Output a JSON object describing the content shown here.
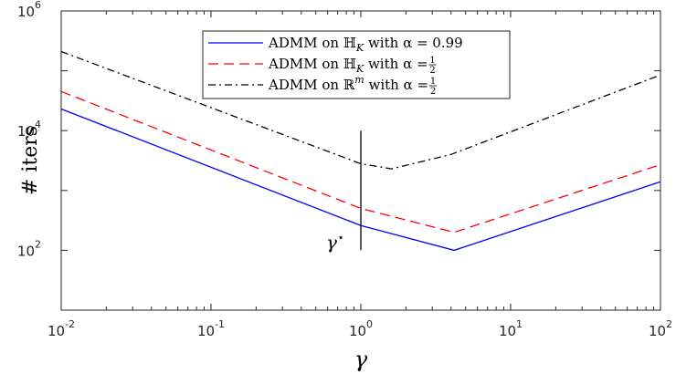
{
  "chart_data": {
    "type": "line",
    "title": "",
    "xlabel": "γ",
    "ylabel": "# iters",
    "xscale": "log",
    "yscale": "log",
    "xlim": [
      0.01,
      100
    ],
    "ylim": [
      10,
      1000000
    ],
    "grid": false,
    "legend_position": "top-center",
    "x_ticks": [
      {
        "base": "10",
        "exp": "-2"
      },
      {
        "base": "10",
        "exp": "-1"
      },
      {
        "base": "10",
        "exp": "0"
      },
      {
        "base": "10",
        "exp": "1"
      },
      {
        "base": "10",
        "exp": "2"
      }
    ],
    "y_ticks": [
      {
        "base": "10",
        "exp": "2"
      },
      {
        "base": "10",
        "exp": "4"
      },
      {
        "base": "10",
        "exp": "6"
      }
    ],
    "series": [
      {
        "name": "ADMM on ℍ_K with α = 0.99",
        "legend_main": "ADMM on ℍ",
        "legend_sub": "K",
        "legend_tail": " with α = 0.99",
        "color": "#0000ff",
        "dash": "solid",
        "x": [
          0.01,
          1,
          4.2,
          100
        ],
        "y": [
          23000,
          260,
          100,
          1400
        ]
      },
      {
        "name": "ADMM on ℍ_K with α = 1/2",
        "legend_main": "ADMM on ℍ",
        "legend_sub": "K",
        "legend_tail": " with α = ",
        "legend_frac": [
          "1",
          "2"
        ],
        "color": "#ff0000",
        "dash": "dashed",
        "x": [
          0.01,
          1,
          4.2,
          100
        ],
        "y": [
          45000,
          500,
          200,
          2700
        ]
      },
      {
        "name": "ADMM on ℝ^m with α = 1/2",
        "legend_main": "ADMM on ℝ",
        "legend_sup": "m",
        "legend_tail": " with α = ",
        "legend_frac": [
          "1",
          "2"
        ],
        "color": "#000000",
        "dash": "dashdot",
        "x": [
          0.01,
          1,
          1.6,
          4,
          100
        ],
        "y": [
          210000,
          2800,
          2300,
          4000,
          85000
        ]
      }
    ],
    "annotations": [
      {
        "type": "vline",
        "x": 1,
        "y_from": 100,
        "y_to": 10000,
        "label": "γ",
        "label_sup": "⋆"
      }
    ]
  }
}
